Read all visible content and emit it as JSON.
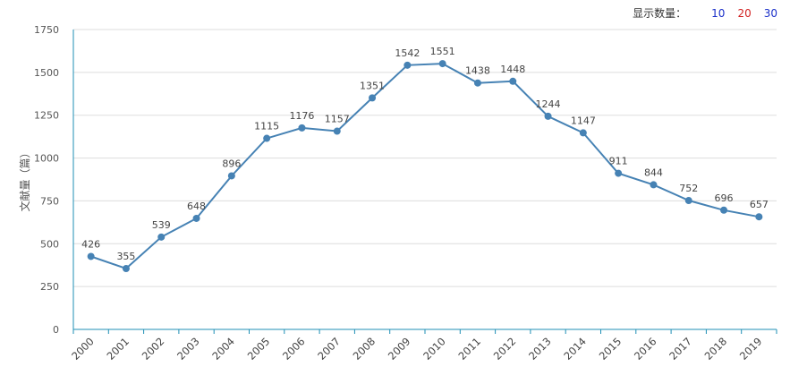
{
  "controls": {
    "label": "显示数量：",
    "options": [
      {
        "label": "10",
        "color": "#1a2fc9"
      },
      {
        "label": "20",
        "color": "#d22222"
      },
      {
        "label": "30",
        "color": "#1a2fc9"
      }
    ]
  },
  "chart_data": {
    "type": "line",
    "ylabel": "文献量（篇）",
    "ylim": [
      0,
      1750
    ],
    "yticks": [
      0,
      250,
      500,
      750,
      1000,
      1250,
      1500,
      1750
    ],
    "x": [
      "2000",
      "2001",
      "2002",
      "2003",
      "2004",
      "2005",
      "2006",
      "2007",
      "2008",
      "2009",
      "2010",
      "2011",
      "2012",
      "2013",
      "2014",
      "2015",
      "2016",
      "2017",
      "2018",
      "2019"
    ],
    "values": [
      426,
      355,
      539,
      648,
      896,
      1115,
      1176,
      1157,
      1351,
      1542,
      1551,
      1438,
      1448,
      1244,
      1147,
      911,
      844,
      752,
      696,
      657
    ],
    "line_color": "#4682b4",
    "grid": true
  }
}
